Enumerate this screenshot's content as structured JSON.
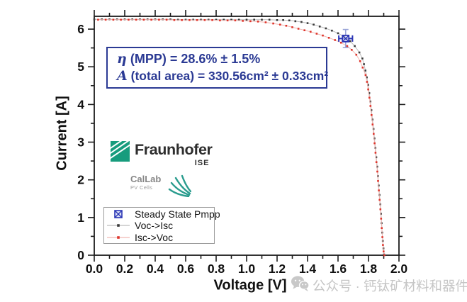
{
  "chart_data": {
    "type": "scatter",
    "title": "",
    "xlabel": "Voltage [V]",
    "ylabel": "Current [A]",
    "xlim": [
      0.0,
      2.0
    ],
    "ylim": [
      0.0,
      6.34
    ],
    "grid": false,
    "legend_position": "lower-left",
    "x_ticks": [
      0.0,
      0.2,
      0.4,
      0.6,
      0.8,
      1.0,
      1.2,
      1.4,
      1.6,
      1.8,
      2.0
    ],
    "x_tick_labels": [
      "0.0",
      "0.2",
      "0.4",
      "0.6",
      "0.8",
      "1.0",
      "1.2",
      "1.4",
      "1.6",
      "1.8",
      "2.0"
    ],
    "y_ticks": [
      0,
      1,
      2,
      3,
      4,
      5,
      6
    ],
    "y_tick_labels": [
      "0",
      "1",
      "2",
      "3",
      "4",
      "5",
      "6"
    ],
    "x_minor_tick_step": 0.1,
    "y_minor_tick_step": 0.5,
    "series": [
      {
        "name": "Voc->Isc",
        "marker_color": "#3a3a3a",
        "line_color": "#bcbcbc",
        "points": [
          [
            0.0,
            6.26
          ],
          [
            0.05,
            6.26
          ],
          [
            0.1,
            6.26
          ],
          [
            0.15,
            6.26
          ],
          [
            0.2,
            6.26
          ],
          [
            0.25,
            6.26
          ],
          [
            0.3,
            6.26
          ],
          [
            0.35,
            6.26
          ],
          [
            0.4,
            6.26
          ],
          [
            0.45,
            6.26
          ],
          [
            0.5,
            6.26
          ],
          [
            0.55,
            6.25
          ],
          [
            0.6,
            6.25
          ],
          [
            0.65,
            6.25
          ],
          [
            0.7,
            6.25
          ],
          [
            0.75,
            6.25
          ],
          [
            0.8,
            6.25
          ],
          [
            0.85,
            6.25
          ],
          [
            0.9,
            6.25
          ],
          [
            0.95,
            6.25
          ],
          [
            1.0,
            6.25
          ],
          [
            1.05,
            6.25
          ],
          [
            1.1,
            6.25
          ],
          [
            1.15,
            6.25
          ],
          [
            1.2,
            6.24
          ],
          [
            1.24,
            6.24
          ],
          [
            1.28,
            6.23
          ],
          [
            1.32,
            6.21
          ],
          [
            1.36,
            6.19
          ],
          [
            1.4,
            6.16
          ],
          [
            1.44,
            6.12
          ],
          [
            1.48,
            6.07
          ],
          [
            1.52,
            6.02
          ],
          [
            1.56,
            5.96
          ],
          [
            1.6,
            5.89
          ],
          [
            1.64,
            5.8
          ],
          [
            1.68,
            5.68
          ],
          [
            1.71,
            5.55
          ],
          [
            1.74,
            5.38
          ],
          [
            1.76,
            5.22
          ],
          [
            1.77,
            5.07
          ],
          [
            1.78,
            4.9
          ],
          [
            1.789,
            4.72
          ],
          [
            1.797,
            4.52
          ],
          [
            1.805,
            4.3
          ],
          [
            1.812,
            4.08
          ],
          [
            1.819,
            3.85
          ],
          [
            1.826,
            3.6
          ],
          [
            1.833,
            3.35
          ],
          [
            1.839,
            3.1
          ],
          [
            1.845,
            2.85
          ],
          [
            1.851,
            2.6
          ],
          [
            1.857,
            2.35
          ],
          [
            1.862,
            2.1
          ],
          [
            1.867,
            1.85
          ],
          [
            1.872,
            1.6
          ],
          [
            1.877,
            1.35
          ],
          [
            1.882,
            1.1
          ],
          [
            1.886,
            0.85
          ],
          [
            1.89,
            0.6
          ],
          [
            1.894,
            0.38
          ],
          [
            1.898,
            0.18
          ],
          [
            1.902,
            0.02
          ]
        ]
      },
      {
        "name": "Isc->Voc",
        "marker_color": "#de352c",
        "line_color": "#f1b7b2",
        "points": [
          [
            0.025,
            6.25
          ],
          [
            0.075,
            6.25
          ],
          [
            0.125,
            6.25
          ],
          [
            0.175,
            6.25
          ],
          [
            0.225,
            6.25
          ],
          [
            0.275,
            6.25
          ],
          [
            0.325,
            6.25
          ],
          [
            0.375,
            6.25
          ],
          [
            0.425,
            6.25
          ],
          [
            0.475,
            6.25
          ],
          [
            0.525,
            6.24
          ],
          [
            0.575,
            6.24
          ],
          [
            0.625,
            6.24
          ],
          [
            0.675,
            6.24
          ],
          [
            0.725,
            6.24
          ],
          [
            0.775,
            6.24
          ],
          [
            0.825,
            6.23
          ],
          [
            0.875,
            6.23
          ],
          [
            0.925,
            6.23
          ],
          [
            0.975,
            6.22
          ],
          [
            1.025,
            6.21
          ],
          [
            1.075,
            6.2
          ],
          [
            1.125,
            6.18
          ],
          [
            1.175,
            6.15
          ],
          [
            1.22,
            6.12
          ],
          [
            1.26,
            6.09
          ],
          [
            1.3,
            6.05
          ],
          [
            1.34,
            6.01
          ],
          [
            1.38,
            5.97
          ],
          [
            1.42,
            5.93
          ],
          [
            1.46,
            5.88
          ],
          [
            1.5,
            5.83
          ],
          [
            1.54,
            5.77
          ],
          [
            1.58,
            5.71
          ],
          [
            1.62,
            5.64
          ],
          [
            1.66,
            5.55
          ],
          [
            1.69,
            5.45
          ],
          [
            1.72,
            5.32
          ],
          [
            1.745,
            5.15
          ],
          [
            1.762,
            4.98
          ],
          [
            1.781,
            4.78
          ],
          [
            1.79,
            4.6
          ],
          [
            1.798,
            4.4
          ],
          [
            1.806,
            4.18
          ],
          [
            1.813,
            3.96
          ],
          [
            1.82,
            3.72
          ],
          [
            1.827,
            3.47
          ],
          [
            1.834,
            3.22
          ],
          [
            1.84,
            2.97
          ],
          [
            1.846,
            2.72
          ],
          [
            1.852,
            2.47
          ],
          [
            1.858,
            2.22
          ],
          [
            1.863,
            1.97
          ],
          [
            1.868,
            1.72
          ],
          [
            1.873,
            1.47
          ],
          [
            1.878,
            1.22
          ],
          [
            1.883,
            0.97
          ],
          [
            1.887,
            0.72
          ],
          [
            1.891,
            0.48
          ],
          [
            1.895,
            0.27
          ],
          [
            1.899,
            0.1
          ],
          [
            1.904,
            0.0
          ]
        ]
      }
    ],
    "pmpp_point": {
      "name": "Steady State Pmpp",
      "voltage": 1.65,
      "current": 5.75,
      "voltage_err": 0.045,
      "current_err": 0.24,
      "color": "#2a35b5",
      "err_color_vertical": "#9aa5d8"
    }
  },
  "annotation_box": {
    "line1_symbol": "η",
    "line1_text": " (MPP) = 28.6% ± 1.5%",
    "line2_symbol": "A",
    "line2_text": " (total area) = 330.56cm² ± 0.33cm²",
    "border_color": "#2b3a94",
    "text_color": "#2b3a94"
  },
  "legend": {
    "items": [
      {
        "label": "Steady State Pmpp",
        "marker": "blue-crossed-square"
      },
      {
        "label": "Voc->Isc",
        "marker": "black-dot-on-gray-line"
      },
      {
        "label": "Isc->Voc",
        "marker": "red-dot-on-red-line"
      }
    ]
  },
  "logos": {
    "fraunhofer_name": "Fraunhofer",
    "fraunhofer_institute": "ISE",
    "fraunhofer_green": "#179c7d",
    "callab_name": "CalLab",
    "callab_sub": "PV Cells",
    "callab_teal": "#2a9c8e"
  },
  "watermark": {
    "text": "公众号 · 钙钛矿材料和器件",
    "color": "#c6c6c6"
  }
}
